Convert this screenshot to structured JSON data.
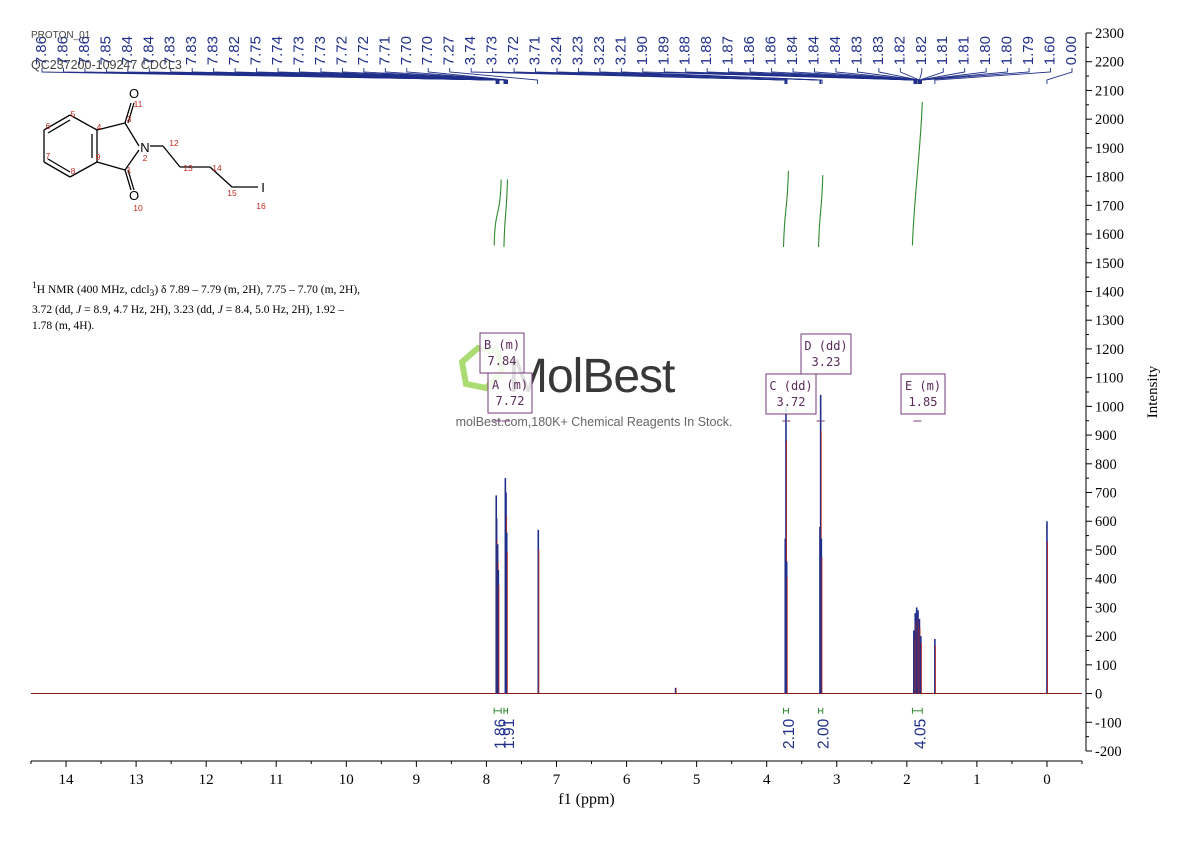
{
  "header": {
    "line1": "PROTON_01",
    "line2": "QC237200-109247 CDCL3"
  },
  "description": {
    "html": "<sup>1</sup>H NMR (400 MHz, cdcl<sub>3</sub>) δ 7.89 – 7.79 (m, 2H), 7.75 – 7.70 (m, 2H),<br>3.72 (dd, <i>J</i> = 8.9, 4.7 Hz, 2H), 3.23 (dd, <i>J</i> = 8.4, 5.0 Hz, 2H), 1.92 –<br>1.78 (m, 4H)."
  },
  "watermark": {
    "brand": "MolBest",
    "tagline": "molBest.com,180K+ Chemical Reagents In Stock."
  },
  "molecule_labels": {
    "atoms": [
      "O",
      "N",
      "O",
      "I"
    ],
    "numbers": [
      "1",
      "2",
      "3",
      "4",
      "5",
      "6",
      "7",
      "8",
      "9",
      "10",
      "11",
      "12",
      "13",
      "14",
      "15",
      "16"
    ]
  },
  "colors": {
    "peak_navy": "#1f2f8a",
    "peak_red": "#c0281e",
    "baseline": "#8b1a1a",
    "integral": "#2e8b2e",
    "label_box": "#7a3a7a",
    "axis": "#000000",
    "mol_red": "#c0281e"
  },
  "chart_data": {
    "type": "line",
    "xlabel": "f1 (ppm)",
    "ylabel": "Intensity",
    "xlim": [
      14.5,
      -0.5
    ],
    "ylim": [
      -200,
      2300
    ],
    "x_reversed": true,
    "x_ticks": [
      14,
      13,
      12,
      11,
      10,
      9,
      8,
      7,
      6,
      5,
      4,
      3,
      2,
      1,
      0
    ],
    "y_ticks": [
      2300,
      2200,
      2100,
      2000,
      1900,
      1800,
      1700,
      1600,
      1500,
      1400,
      1300,
      1200,
      1100,
      1000,
      900,
      800,
      700,
      600,
      500,
      400,
      300,
      200,
      100,
      0,
      -100,
      -200
    ],
    "peak_labels": [
      "7.86",
      "7.86",
      "7.86",
      "7.85",
      "7.84",
      "7.84",
      "7.83",
      "7.83",
      "7.83",
      "7.82",
      "7.75",
      "7.74",
      "7.73",
      "7.73",
      "7.72",
      "7.72",
      "7.71",
      "7.70",
      "7.70",
      "7.27",
      "3.74",
      "3.73",
      "3.72",
      "3.71",
      "3.24",
      "3.23",
      "3.23",
      "3.21",
      "1.90",
      "1.89",
      "1.88",
      "1.88",
      "1.87",
      "1.86",
      "1.86",
      "1.84",
      "1.84",
      "1.84",
      "1.83",
      "1.83",
      "1.82",
      "1.82",
      "1.81",
      "1.81",
      "1.80",
      "1.80",
      "1.79",
      "1.60",
      "0.00"
    ],
    "peaks": [
      {
        "ppm": 7.86,
        "intensity": 690
      },
      {
        "ppm": 7.855,
        "intensity": 610
      },
      {
        "ppm": 7.84,
        "intensity": 520
      },
      {
        "ppm": 7.83,
        "intensity": 430
      },
      {
        "ppm": 7.73,
        "intensity": 750
      },
      {
        "ppm": 7.72,
        "intensity": 700
      },
      {
        "ppm": 7.71,
        "intensity": 560
      },
      {
        "ppm": 7.26,
        "intensity": 570
      },
      {
        "ppm": 5.3,
        "intensity": 20
      },
      {
        "ppm": 3.735,
        "intensity": 540
      },
      {
        "ppm": 3.725,
        "intensity": 1000
      },
      {
        "ppm": 3.715,
        "intensity": 460
      },
      {
        "ppm": 3.24,
        "intensity": 580
      },
      {
        "ppm": 3.23,
        "intensity": 1040
      },
      {
        "ppm": 3.22,
        "intensity": 540
      },
      {
        "ppm": 1.9,
        "intensity": 220
      },
      {
        "ppm": 1.88,
        "intensity": 280
      },
      {
        "ppm": 1.86,
        "intensity": 300
      },
      {
        "ppm": 1.84,
        "intensity": 290
      },
      {
        "ppm": 1.82,
        "intensity": 260
      },
      {
        "ppm": 1.8,
        "intensity": 200
      },
      {
        "ppm": 1.6,
        "intensity": 190
      },
      {
        "ppm": 0.0,
        "intensity": 600
      }
    ],
    "integrals": [
      {
        "value": "1.86",
        "from": 7.89,
        "to": 7.79,
        "curve_low": 1560,
        "curve_high": 1790
      },
      {
        "value": "1.91",
        "from": 7.75,
        "to": 7.7,
        "curve_low": 1555,
        "curve_high": 1790
      },
      {
        "value": "2.10",
        "from": 3.76,
        "to": 3.69,
        "curve_low": 1555,
        "curve_high": 1820
      },
      {
        "value": "2.00",
        "from": 3.26,
        "to": 3.2,
        "curve_low": 1555,
        "curve_high": 1805
      },
      {
        "value": "4.05",
        "from": 1.92,
        "to": 1.78,
        "curve_low": 1560,
        "curve_high": 2060
      }
    ],
    "multiplets": [
      {
        "label": "B (m)",
        "shift": "7.84",
        "ppm": 7.84
      },
      {
        "label": "A (m)",
        "shift": "7.72",
        "ppm": 7.72
      },
      {
        "label": "C (dd)",
        "shift": "3.72",
        "ppm": 3.72
      },
      {
        "label": "D (dd)",
        "shift": "3.23",
        "ppm": 3.23
      },
      {
        "label": "E (m)",
        "shift": "1.85",
        "ppm": 1.85
      }
    ]
  }
}
